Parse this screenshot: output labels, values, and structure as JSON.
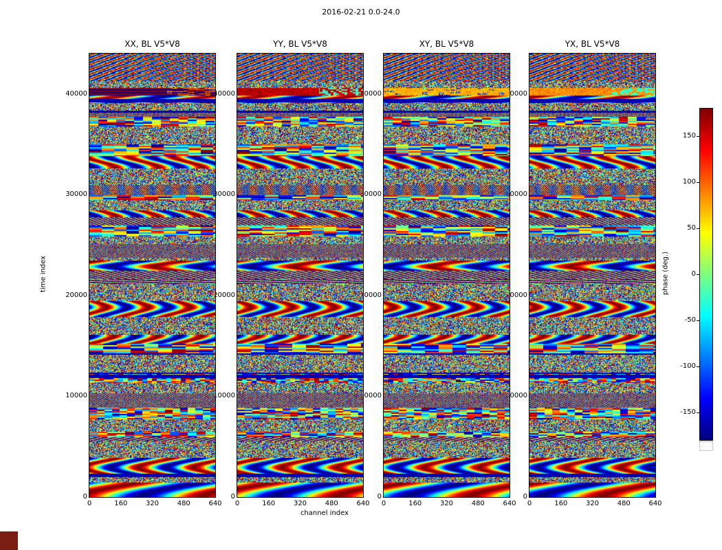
{
  "chart_data": {
    "type": "heatmap",
    "title": "2016-02-21 0.0-24.0",
    "panels": [
      {
        "title": "XX, BL V5*V8"
      },
      {
        "title": "YY, BL V5*V8"
      },
      {
        "title": "XY, BL V5*V8"
      },
      {
        "title": "YX, BL V5*V8"
      }
    ],
    "xlabel": "channel index",
    "ylabel": "time index",
    "xlim": [
      0,
      640
    ],
    "ylim": [
      0,
      44000
    ],
    "x_ticks": [
      0,
      160,
      320,
      480,
      640
    ],
    "y_ticks": [
      0,
      10000,
      20000,
      30000,
      40000
    ],
    "colorbar": {
      "label": "phase (deg.)",
      "ticks": [
        150,
        100,
        50,
        0,
        -50,
        -100,
        -150
      ],
      "range": [
        -180,
        180
      ],
      "colormap": "jet"
    },
    "content": "dense pseudorandom fringe-phase noise arranged in horizontal time bands; the same band structure repeats across the four polarization panels",
    "features": [
      {
        "time_range": [
          39850,
          40600
        ],
        "per_panel": [
          "XX: alternating dark-red / dark-blue stripes",
          "YY: saturated red-orange band with cyan gaps at right",
          "XY: yellow-green band with noisy gaps",
          "YX: yellow band with cyan segments at right"
        ]
      },
      {
        "time_range": [
          39200,
          39500
        ],
        "per_panel": "thin dark-blue row in all panels"
      },
      {
        "time_range": [
          11850,
          12200
        ],
        "per_panel": "thin dark-blue row in all panels"
      },
      {
        "time_range": [
          22500,
          23500
        ],
        "per_panel": "smooth large-scale phase blobs in all panels"
      },
      {
        "time_range": [
          0,
          1500
        ],
        "per_panel": "smooth rainbow fringe blobs in all panels"
      }
    ]
  },
  "background_artifact": {
    "color": "#7a1d12"
  }
}
